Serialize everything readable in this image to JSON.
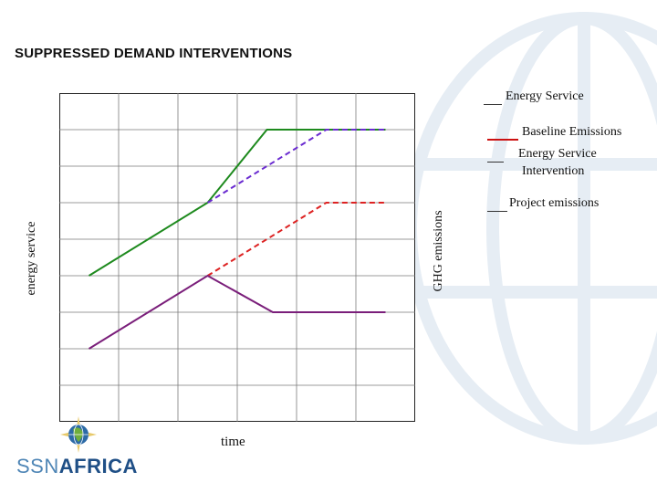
{
  "slide": {
    "title": "SUPPRESSED DEMAND INTERVENTIONS"
  },
  "logo": {
    "text_light": "SSN",
    "text_bold": "AFRICA"
  },
  "colors": {
    "green": "#1e8a1e",
    "purple_dashed": "#6a2bd0",
    "red_dashed": "#dd2222",
    "purple": "#7a1e7a",
    "grid": "#7a7a7a",
    "logo_light": "#4f86b6",
    "logo_dark": "#1f4f86"
  },
  "chart_data": {
    "type": "line",
    "title": "",
    "xlabel": "time",
    "ylabel_left": "energy service",
    "ylabel_right": "GHG emissions",
    "xlim": [
      0,
      6
    ],
    "ylim": [
      0,
      9
    ],
    "grid": true,
    "legend": [
      {
        "label": "Energy Service",
        "swatch": "short"
      },
      {
        "label": "Baseline Emissions",
        "swatch": "long"
      },
      {
        "label": "Energy Service Intervention",
        "lines": [
          "Energy Service",
          "Intervention"
        ],
        "swatch": "short"
      },
      {
        "label": "Project emissions",
        "swatch": "short"
      }
    ],
    "series": [
      {
        "id": "energy-service-intervention",
        "color": "#1e8a1e",
        "dash": false,
        "points": [
          [
            0.5,
            4
          ],
          [
            2.5,
            6
          ],
          [
            3.5,
            8
          ],
          [
            5.5,
            8
          ]
        ]
      },
      {
        "id": "energy-service",
        "color": "#6a2bd0",
        "dash": true,
        "points": [
          [
            2.5,
            6
          ],
          [
            4.5,
            8
          ],
          [
            5.5,
            8
          ]
        ]
      },
      {
        "id": "baseline-emissions",
        "color": "#dd2222",
        "dash": true,
        "points": [
          [
            2.5,
            4
          ],
          [
            4.5,
            6
          ],
          [
            5.5,
            6
          ]
        ]
      },
      {
        "id": "project-emissions",
        "color": "#7a1e7a",
        "dash": false,
        "points": [
          [
            0.5,
            2
          ],
          [
            2.5,
            4
          ],
          [
            3.6,
            3
          ],
          [
            5.5,
            3
          ]
        ]
      }
    ]
  }
}
